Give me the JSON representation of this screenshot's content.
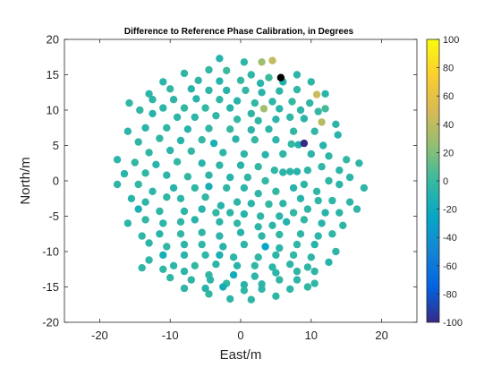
{
  "chart_data": {
    "type": "scatter",
    "title": "Difference to Reference Phase Calibration, in Degrees",
    "xlabel": "East/m",
    "ylabel": "North/m",
    "xlim": [
      -25,
      25
    ],
    "ylim": [
      -20,
      20
    ],
    "xticks": [
      "-20",
      "-10",
      "0",
      "10",
      "20"
    ],
    "yticks": [
      "-20",
      "-15",
      "-10",
      "-5",
      "0",
      "5",
      "10",
      "15",
      "20"
    ],
    "grid": false,
    "colorbar": {
      "colormap": "parula",
      "clim": [
        -100,
        100
      ],
      "ticks": [
        "100",
        "80",
        "60",
        "40",
        "20",
        "0",
        "-20",
        "-40",
        "-60",
        "-80",
        "-100"
      ]
    },
    "points": [
      [
        -3.0,
        17.3,
        -8
      ],
      [
        0.5,
        16.8,
        -5
      ],
      [
        3.0,
        16.8,
        30
      ],
      [
        4.5,
        17.0,
        42
      ],
      [
        -8.0,
        15.2,
        -5
      ],
      [
        -4.5,
        15.7,
        -3
      ],
      [
        -2.0,
        15.6,
        2
      ],
      [
        1.5,
        15.0,
        -4
      ],
      [
        4.0,
        14.6,
        2
      ],
      [
        8.0,
        15.0,
        -6
      ],
      [
        -11.0,
        14.0,
        -6
      ],
      [
        -6.0,
        14.2,
        -4
      ],
      [
        -3.0,
        14.1,
        -8
      ],
      [
        0.0,
        14.2,
        -2
      ],
      [
        2.8,
        13.8,
        -6
      ],
      [
        6.0,
        14.0,
        -10
      ],
      [
        10.0,
        14.0,
        -5
      ],
      [
        -13.0,
        12.3,
        -6
      ],
      [
        -10.0,
        13.0,
        -3
      ],
      [
        -7.0,
        13.0,
        -8
      ],
      [
        -4.5,
        12.8,
        -5
      ],
      [
        -2.0,
        12.8,
        -8
      ],
      [
        0.7,
        12.8,
        -3
      ],
      [
        3.0,
        12.5,
        -8
      ],
      [
        5.5,
        12.7,
        -6
      ],
      [
        8.0,
        12.9,
        -3
      ],
      [
        10.8,
        12.2,
        45
      ],
      [
        12.0,
        12.3,
        -7
      ],
      [
        -15.8,
        11.0,
        -4
      ],
      [
        -12.5,
        11.5,
        -6
      ],
      [
        -9.5,
        11.5,
        -5
      ],
      [
        -6.3,
        11.6,
        -8
      ],
      [
        -3.0,
        11.5,
        -4
      ],
      [
        -0.5,
        11.3,
        -8
      ],
      [
        2.0,
        11.0,
        -3
      ],
      [
        4.5,
        11.2,
        -6
      ],
      [
        7.3,
        11.2,
        -2
      ],
      [
        9.8,
        11.0,
        -4
      ],
      [
        12.0,
        10.2,
        3
      ],
      [
        -14.3,
        10.0,
        -3
      ],
      [
        -11.0,
        10.3,
        -6
      ],
      [
        -8.0,
        10.3,
        -3
      ],
      [
        -5.0,
        10.3,
        -2
      ],
      [
        -1.5,
        10.3,
        -8
      ],
      [
        1.5,
        9.5,
        -5
      ],
      [
        3.3,
        10.2,
        30
      ],
      [
        5.5,
        10.2,
        -8
      ],
      [
        8.5,
        10.0,
        -5
      ],
      [
        11.0,
        9.8,
        -2
      ],
      [
        -12.5,
        9.5,
        -8
      ],
      [
        -9.0,
        9.0,
        -5
      ],
      [
        -6.5,
        9.0,
        -6
      ],
      [
        -3.5,
        9.2,
        -4
      ],
      [
        -0.5,
        8.7,
        -2
      ],
      [
        2.5,
        8.5,
        -4
      ],
      [
        5.0,
        8.7,
        -6
      ],
      [
        7.0,
        9.0,
        -4
      ],
      [
        9.0,
        8.8,
        -7
      ],
      [
        11.5,
        8.3,
        38
      ],
      [
        13.5,
        8.0,
        -5
      ],
      [
        -16.0,
        7.0,
        -6
      ],
      [
        -13.5,
        7.5,
        -8
      ],
      [
        -10.5,
        7.5,
        -4
      ],
      [
        -7.5,
        7.3,
        -8
      ],
      [
        -4.5,
        7.4,
        -3
      ],
      [
        -1.5,
        7.3,
        -2
      ],
      [
        1.5,
        7.2,
        -6
      ],
      [
        4.0,
        7.3,
        -5
      ],
      [
        7.5,
        7.0,
        -3
      ],
      [
        10.5,
        7.0,
        -4
      ],
      [
        13.8,
        6.5,
        -7
      ],
      [
        -14.5,
        5.5,
        -5
      ],
      [
        -11.5,
        6.0,
        -4
      ],
      [
        -8.5,
        5.7,
        -8
      ],
      [
        -5.5,
        5.8,
        -2
      ],
      [
        -3.8,
        5.3,
        -14
      ],
      [
        -0.7,
        5.9,
        -8
      ],
      [
        2.0,
        5.8,
        -3
      ],
      [
        5.0,
        5.8,
        -6
      ],
      [
        7.2,
        5.2,
        -2
      ],
      [
        8.2,
        5.1,
        -10
      ],
      [
        9.0,
        5.3,
        -100
      ],
      [
        11.7,
        5.0,
        -8
      ],
      [
        -13.0,
        4.0,
        -4
      ],
      [
        -10.0,
        4.3,
        -6
      ],
      [
        -7.0,
        4.2,
        -3
      ],
      [
        -2.5,
        4.0,
        -4
      ],
      [
        0.5,
        3.8,
        -5
      ],
      [
        3.5,
        3.7,
        -8
      ],
      [
        6.0,
        3.8,
        -4
      ],
      [
        10.0,
        3.8,
        -6
      ],
      [
        12.5,
        3.5,
        -5
      ],
      [
        15.0,
        3.0,
        -3
      ],
      [
        -17.5,
        3.0,
        -6
      ],
      [
        -15.0,
        2.6,
        -3
      ],
      [
        -12.0,
        2.3,
        -8
      ],
      [
        -9.0,
        2.7,
        -2
      ],
      [
        -5.5,
        2.5,
        -8
      ],
      [
        -3.0,
        2.2,
        -5
      ],
      [
        0.0,
        2.2,
        -7
      ],
      [
        2.5,
        2.0,
        -3
      ],
      [
        4.8,
        1.5,
        -4
      ],
      [
        7.0,
        1.3,
        -6
      ],
      [
        9.5,
        1.5,
        -5
      ],
      [
        11.5,
        2.0,
        -4
      ],
      [
        14.0,
        1.5,
        -6
      ],
      [
        16.8,
        2.5,
        -5
      ],
      [
        -16.5,
        1.0,
        -7
      ],
      [
        -13.5,
        1.1,
        -4
      ],
      [
        -10.5,
        0.8,
        -6
      ],
      [
        -7.5,
        0.6,
        -3
      ],
      [
        -4.5,
        0.8,
        -5
      ],
      [
        -1.5,
        0.5,
        -8
      ],
      [
        1.0,
        0.5,
        -4
      ],
      [
        3.5,
        0.0,
        -2
      ],
      [
        6.0,
        1.2,
        -5
      ],
      [
        8.0,
        1.3,
        -7
      ],
      [
        12.5,
        0.0,
        -4
      ],
      [
        15.5,
        0.5,
        -6
      ],
      [
        -17.5,
        -0.5,
        -5
      ],
      [
        -14.5,
        -0.5,
        -3
      ],
      [
        -12.5,
        -1.5,
        -6
      ],
      [
        -9.5,
        -1.0,
        -8
      ],
      [
        -6.5,
        -1.0,
        -4
      ],
      [
        -4.5,
        -0.8,
        -16
      ],
      [
        -2.0,
        -1.0,
        -4
      ],
      [
        0.5,
        -1.0,
        -6
      ],
      [
        2.5,
        -1.8,
        -5
      ],
      [
        5.0,
        -1.5,
        -3
      ],
      [
        7.5,
        -1.0,
        -8
      ],
      [
        9.0,
        -0.5,
        -5
      ],
      [
        10.8,
        -1.5,
        -4
      ],
      [
        14.0,
        -0.5,
        -6
      ],
      [
        17.5,
        -1.0,
        -4
      ],
      [
        -15.5,
        -2.5,
        -7
      ],
      [
        -13.5,
        -3.0,
        -5
      ],
      [
        -10.5,
        -2.3,
        -4
      ],
      [
        -8.5,
        -2.5,
        -6
      ],
      [
        -5.0,
        -2.3,
        -3
      ],
      [
        -2.8,
        -3.5,
        -8
      ],
      [
        -0.5,
        -3.0,
        -5
      ],
      [
        1.5,
        -3.2,
        -6
      ],
      [
        4.0,
        -3.3,
        -3
      ],
      [
        6.0,
        -3.2,
        -5
      ],
      [
        8.5,
        -2.5,
        -8
      ],
      [
        11.0,
        -2.8,
        -4
      ],
      [
        13.0,
        -2.8,
        -6
      ],
      [
        15.5,
        -3.0,
        -5
      ],
      [
        -14.5,
        -4.0,
        -14
      ],
      [
        -11.5,
        -4.3,
        -4
      ],
      [
        -8.0,
        -4.3,
        -6
      ],
      [
        -5.5,
        -4.0,
        -8
      ],
      [
        -3.5,
        -4.5,
        -3
      ],
      [
        -1.5,
        -4.5,
        -5
      ],
      [
        0.5,
        -4.7,
        -8
      ],
      [
        2.8,
        -5.0,
        -4
      ],
      [
        5.5,
        -5.0,
        -6
      ],
      [
        7.5,
        -4.5,
        -3
      ],
      [
        9.5,
        -4.0,
        -5
      ],
      [
        12.0,
        -4.5,
        -7
      ],
      [
        14.0,
        -4.5,
        -6
      ],
      [
        16.5,
        -4.0,
        -4
      ],
      [
        -16.0,
        -6.0,
        -6
      ],
      [
        -13.5,
        -5.5,
        -3
      ],
      [
        -11.0,
        -6.0,
        -6
      ],
      [
        -8.5,
        -5.8,
        -4
      ],
      [
        -6.5,
        -5.5,
        -8
      ],
      [
        -3.0,
        -5.8,
        -5
      ],
      [
        -0.5,
        -6.0,
        -4
      ],
      [
        2.5,
        -6.5,
        -6
      ],
      [
        4.5,
        -6.3,
        -5
      ],
      [
        6.5,
        -5.8,
        -10
      ],
      [
        9.0,
        -5.5,
        -4
      ],
      [
        11.5,
        -6.0,
        -8
      ],
      [
        14.5,
        -6.3,
        -5
      ],
      [
        -14.0,
        -7.8,
        -4
      ],
      [
        -11.5,
        -7.5,
        -8
      ],
      [
        -8.5,
        -7.5,
        -3
      ],
      [
        -5.5,
        -7.3,
        -5
      ],
      [
        -3.0,
        -7.8,
        -6
      ],
      [
        0.0,
        -7.3,
        -8
      ],
      [
        3.0,
        -7.8,
        -4
      ],
      [
        5.5,
        -7.6,
        -2
      ],
      [
        8.5,
        -7.5,
        -5
      ],
      [
        11.0,
        -7.8,
        -6
      ],
      [
        13.0,
        -7.5,
        -4
      ],
      [
        -13.0,
        -8.8,
        -5
      ],
      [
        -10.5,
        -9.3,
        -3
      ],
      [
        -8.0,
        -9.0,
        -6
      ],
      [
        -5.5,
        -9.0,
        -4
      ],
      [
        -2.5,
        -9.3,
        -8
      ],
      [
        0.5,
        -9.0,
        -5
      ],
      [
        3.5,
        -9.3,
        -26
      ],
      [
        5.5,
        -9.5,
        -6
      ],
      [
        8.0,
        -9.0,
        -4
      ],
      [
        10.5,
        -9.0,
        -8
      ],
      [
        -11.0,
        -10.5,
        -16
      ],
      [
        -8.0,
        -10.5,
        -8
      ],
      [
        -5.0,
        -10.5,
        -4
      ],
      [
        -3.0,
        -10.5,
        -14
      ],
      [
        -1.0,
        -10.8,
        -6
      ],
      [
        2.5,
        -10.8,
        -4
      ],
      [
        5.0,
        -10.5,
        -5
      ],
      [
        7.5,
        -10.5,
        -3
      ],
      [
        10.0,
        -10.8,
        -6
      ],
      [
        13.5,
        -10.0,
        -5
      ],
      [
        -13.0,
        -11.2,
        -4
      ],
      [
        -9.5,
        -12.0,
        -6
      ],
      [
        -6.5,
        -12.0,
        -3
      ],
      [
        -3.5,
        -11.8,
        -5
      ],
      [
        -0.5,
        -12.0,
        -8
      ],
      [
        2.0,
        -12.0,
        -4
      ],
      [
        4.5,
        -12.2,
        -6
      ],
      [
        7.0,
        -11.8,
        -5
      ],
      [
        9.5,
        -12.2,
        -4
      ],
      [
        12.5,
        -11.5,
        -7
      ],
      [
        -14.0,
        -12.3,
        -5
      ],
      [
        -11.0,
        -12.5,
        -4
      ],
      [
        -8.0,
        -12.8,
        -6
      ],
      [
        -4.5,
        -13.3,
        -3
      ],
      [
        -1.0,
        -13.3,
        -18
      ],
      [
        2.0,
        -13.5,
        -5
      ],
      [
        5.0,
        -13.0,
        -6
      ],
      [
        8.0,
        -12.8,
        -4
      ],
      [
        10.5,
        -12.8,
        -5
      ],
      [
        -10.0,
        -13.7,
        -4
      ],
      [
        -7.0,
        -14.0,
        -5
      ],
      [
        -4.3,
        -14.0,
        -6
      ],
      [
        -2.0,
        -14.5,
        -3
      ],
      [
        0.5,
        -14.7,
        -8
      ],
      [
        3.0,
        -14.6,
        -5
      ],
      [
        5.5,
        -14.0,
        -4
      ],
      [
        8.0,
        -14.0,
        -6
      ],
      [
        10.5,
        -14.5,
        -4
      ],
      [
        -8.0,
        -15.2,
        -5
      ],
      [
        -5.0,
        -15.2,
        -8
      ],
      [
        -2.5,
        -15.0,
        -18
      ],
      [
        0.5,
        -15.5,
        -4
      ],
      [
        3.0,
        -15.3,
        -6
      ],
      [
        7.0,
        -15.3,
        -5
      ],
      [
        9.5,
        -15.0,
        -4
      ],
      [
        -4.5,
        -16.0,
        -3
      ],
      [
        -1.5,
        -16.7,
        -6
      ],
      [
        1.5,
        -16.8,
        -5
      ],
      [
        5.0,
        -16.3,
        -4
      ]
    ],
    "highlight_points": [
      [
        5.7,
        14.6,
        -100
      ]
    ]
  }
}
